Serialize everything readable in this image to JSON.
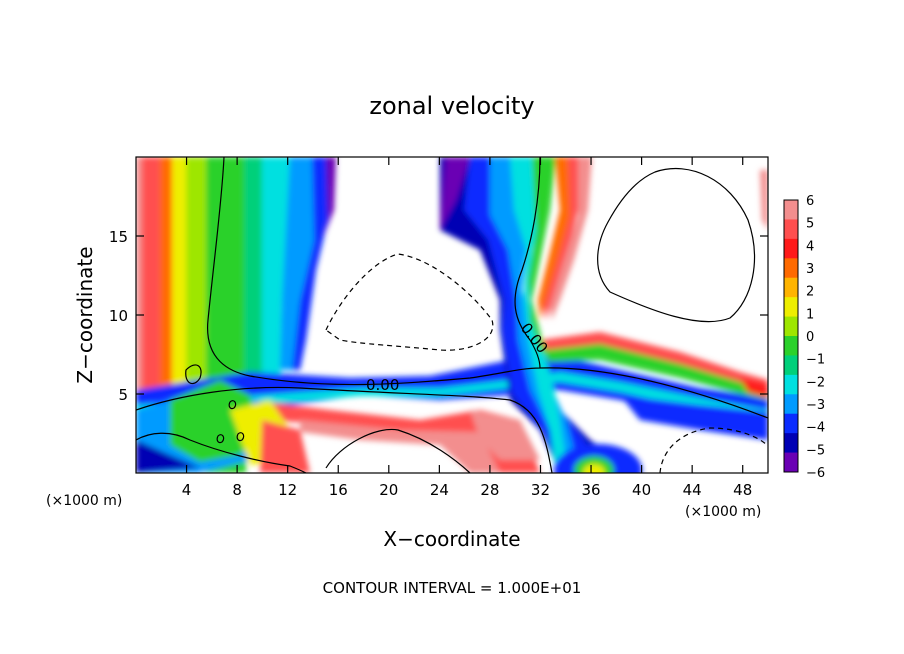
{
  "chart_data": {
    "type": "heatmap",
    "title": "zonal velocity",
    "xlabel": "X−coordinate",
    "ylabel": "Z−coordinate",
    "x_unit_label_left": "(×1000 m)",
    "x_unit_label_right": "(×1000 m)",
    "footer": "CONTOUR INTERVAL = 1.000E+01",
    "xlim": [
      0,
      50
    ],
    "ylim": [
      0,
      20
    ],
    "x_ticks": [
      4,
      8,
      12,
      16,
      20,
      24,
      28,
      32,
      36,
      40,
      44,
      48
    ],
    "y_ticks": [
      5,
      10,
      15
    ],
    "contour_labels": [
      "0.00",
      "0.00"
    ],
    "colorbar": {
      "ticks": [
        6,
        5,
        4,
        3,
        2,
        1,
        0,
        -1,
        -2,
        -3,
        -4,
        -5,
        -6
      ],
      "tick_labels": [
        "6",
        "5",
        "4",
        "3",
        "2",
        "1",
        "0",
        "−1",
        "−2",
        "−3",
        "−4",
        "−5",
        "−6"
      ],
      "colors": [
        "#f38e8e",
        "#ff4f4f",
        "#ff1a1a",
        "#ff6a00",
        "#ffb400",
        "#eeee00",
        "#9ee600",
        "#2bd12b",
        "#00d07a",
        "#00e0e0",
        "#009bff",
        "#0a2cff",
        "#0000b4",
        "#6a00b4"
      ]
    }
  }
}
